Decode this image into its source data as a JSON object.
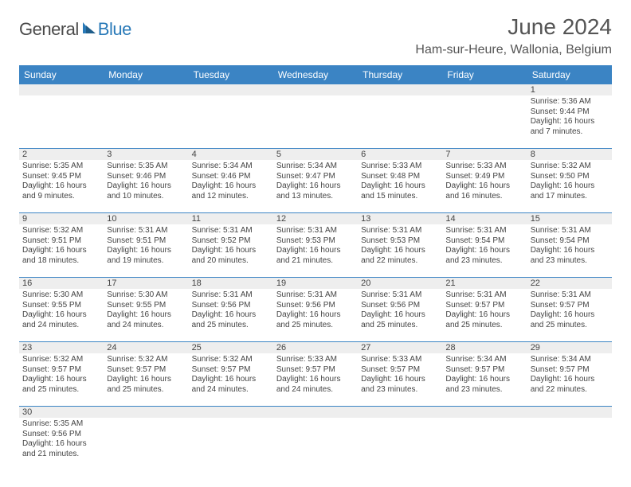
{
  "logo": {
    "general": "General",
    "blue": "Blue"
  },
  "title": "June 2024",
  "location": "Ham-sur-Heure, Wallonia, Belgium",
  "colors": {
    "header_bg": "#3b84c4",
    "header_text": "#ffffff",
    "daynum_bg": "#eeeeee",
    "border": "#3b84c4",
    "text": "#444444",
    "logo_blue": "#2a7ab8"
  },
  "weekdays": [
    "Sunday",
    "Monday",
    "Tuesday",
    "Wednesday",
    "Thursday",
    "Friday",
    "Saturday"
  ],
  "weeks": [
    [
      null,
      null,
      null,
      null,
      null,
      null,
      {
        "n": "1",
        "sunrise": "Sunrise: 5:36 AM",
        "sunset": "Sunset: 9:44 PM",
        "daylight1": "Daylight: 16 hours",
        "daylight2": "and 7 minutes."
      }
    ],
    [
      {
        "n": "2",
        "sunrise": "Sunrise: 5:35 AM",
        "sunset": "Sunset: 9:45 PM",
        "daylight1": "Daylight: 16 hours",
        "daylight2": "and 9 minutes."
      },
      {
        "n": "3",
        "sunrise": "Sunrise: 5:35 AM",
        "sunset": "Sunset: 9:46 PM",
        "daylight1": "Daylight: 16 hours",
        "daylight2": "and 10 minutes."
      },
      {
        "n": "4",
        "sunrise": "Sunrise: 5:34 AM",
        "sunset": "Sunset: 9:46 PM",
        "daylight1": "Daylight: 16 hours",
        "daylight2": "and 12 minutes."
      },
      {
        "n": "5",
        "sunrise": "Sunrise: 5:34 AM",
        "sunset": "Sunset: 9:47 PM",
        "daylight1": "Daylight: 16 hours",
        "daylight2": "and 13 minutes."
      },
      {
        "n": "6",
        "sunrise": "Sunrise: 5:33 AM",
        "sunset": "Sunset: 9:48 PM",
        "daylight1": "Daylight: 16 hours",
        "daylight2": "and 15 minutes."
      },
      {
        "n": "7",
        "sunrise": "Sunrise: 5:33 AM",
        "sunset": "Sunset: 9:49 PM",
        "daylight1": "Daylight: 16 hours",
        "daylight2": "and 16 minutes."
      },
      {
        "n": "8",
        "sunrise": "Sunrise: 5:32 AM",
        "sunset": "Sunset: 9:50 PM",
        "daylight1": "Daylight: 16 hours",
        "daylight2": "and 17 minutes."
      }
    ],
    [
      {
        "n": "9",
        "sunrise": "Sunrise: 5:32 AM",
        "sunset": "Sunset: 9:51 PM",
        "daylight1": "Daylight: 16 hours",
        "daylight2": "and 18 minutes."
      },
      {
        "n": "10",
        "sunrise": "Sunrise: 5:31 AM",
        "sunset": "Sunset: 9:51 PM",
        "daylight1": "Daylight: 16 hours",
        "daylight2": "and 19 minutes."
      },
      {
        "n": "11",
        "sunrise": "Sunrise: 5:31 AM",
        "sunset": "Sunset: 9:52 PM",
        "daylight1": "Daylight: 16 hours",
        "daylight2": "and 20 minutes."
      },
      {
        "n": "12",
        "sunrise": "Sunrise: 5:31 AM",
        "sunset": "Sunset: 9:53 PM",
        "daylight1": "Daylight: 16 hours",
        "daylight2": "and 21 minutes."
      },
      {
        "n": "13",
        "sunrise": "Sunrise: 5:31 AM",
        "sunset": "Sunset: 9:53 PM",
        "daylight1": "Daylight: 16 hours",
        "daylight2": "and 22 minutes."
      },
      {
        "n": "14",
        "sunrise": "Sunrise: 5:31 AM",
        "sunset": "Sunset: 9:54 PM",
        "daylight1": "Daylight: 16 hours",
        "daylight2": "and 23 minutes."
      },
      {
        "n": "15",
        "sunrise": "Sunrise: 5:31 AM",
        "sunset": "Sunset: 9:54 PM",
        "daylight1": "Daylight: 16 hours",
        "daylight2": "and 23 minutes."
      }
    ],
    [
      {
        "n": "16",
        "sunrise": "Sunrise: 5:30 AM",
        "sunset": "Sunset: 9:55 PM",
        "daylight1": "Daylight: 16 hours",
        "daylight2": "and 24 minutes."
      },
      {
        "n": "17",
        "sunrise": "Sunrise: 5:30 AM",
        "sunset": "Sunset: 9:55 PM",
        "daylight1": "Daylight: 16 hours",
        "daylight2": "and 24 minutes."
      },
      {
        "n": "18",
        "sunrise": "Sunrise: 5:31 AM",
        "sunset": "Sunset: 9:56 PM",
        "daylight1": "Daylight: 16 hours",
        "daylight2": "and 25 minutes."
      },
      {
        "n": "19",
        "sunrise": "Sunrise: 5:31 AM",
        "sunset": "Sunset: 9:56 PM",
        "daylight1": "Daylight: 16 hours",
        "daylight2": "and 25 minutes."
      },
      {
        "n": "20",
        "sunrise": "Sunrise: 5:31 AM",
        "sunset": "Sunset: 9:56 PM",
        "daylight1": "Daylight: 16 hours",
        "daylight2": "and 25 minutes."
      },
      {
        "n": "21",
        "sunrise": "Sunrise: 5:31 AM",
        "sunset": "Sunset: 9:57 PM",
        "daylight1": "Daylight: 16 hours",
        "daylight2": "and 25 minutes."
      },
      {
        "n": "22",
        "sunrise": "Sunrise: 5:31 AM",
        "sunset": "Sunset: 9:57 PM",
        "daylight1": "Daylight: 16 hours",
        "daylight2": "and 25 minutes."
      }
    ],
    [
      {
        "n": "23",
        "sunrise": "Sunrise: 5:32 AM",
        "sunset": "Sunset: 9:57 PM",
        "daylight1": "Daylight: 16 hours",
        "daylight2": "and 25 minutes."
      },
      {
        "n": "24",
        "sunrise": "Sunrise: 5:32 AM",
        "sunset": "Sunset: 9:57 PM",
        "daylight1": "Daylight: 16 hours",
        "daylight2": "and 25 minutes."
      },
      {
        "n": "25",
        "sunrise": "Sunrise: 5:32 AM",
        "sunset": "Sunset: 9:57 PM",
        "daylight1": "Daylight: 16 hours",
        "daylight2": "and 24 minutes."
      },
      {
        "n": "26",
        "sunrise": "Sunrise: 5:33 AM",
        "sunset": "Sunset: 9:57 PM",
        "daylight1": "Daylight: 16 hours",
        "daylight2": "and 24 minutes."
      },
      {
        "n": "27",
        "sunrise": "Sunrise: 5:33 AM",
        "sunset": "Sunset: 9:57 PM",
        "daylight1": "Daylight: 16 hours",
        "daylight2": "and 23 minutes."
      },
      {
        "n": "28",
        "sunrise": "Sunrise: 5:34 AM",
        "sunset": "Sunset: 9:57 PM",
        "daylight1": "Daylight: 16 hours",
        "daylight2": "and 23 minutes."
      },
      {
        "n": "29",
        "sunrise": "Sunrise: 5:34 AM",
        "sunset": "Sunset: 9:57 PM",
        "daylight1": "Daylight: 16 hours",
        "daylight2": "and 22 minutes."
      }
    ],
    [
      {
        "n": "30",
        "sunrise": "Sunrise: 5:35 AM",
        "sunset": "Sunset: 9:56 PM",
        "daylight1": "Daylight: 16 hours",
        "daylight2": "and 21 minutes."
      },
      null,
      null,
      null,
      null,
      null,
      null
    ]
  ]
}
